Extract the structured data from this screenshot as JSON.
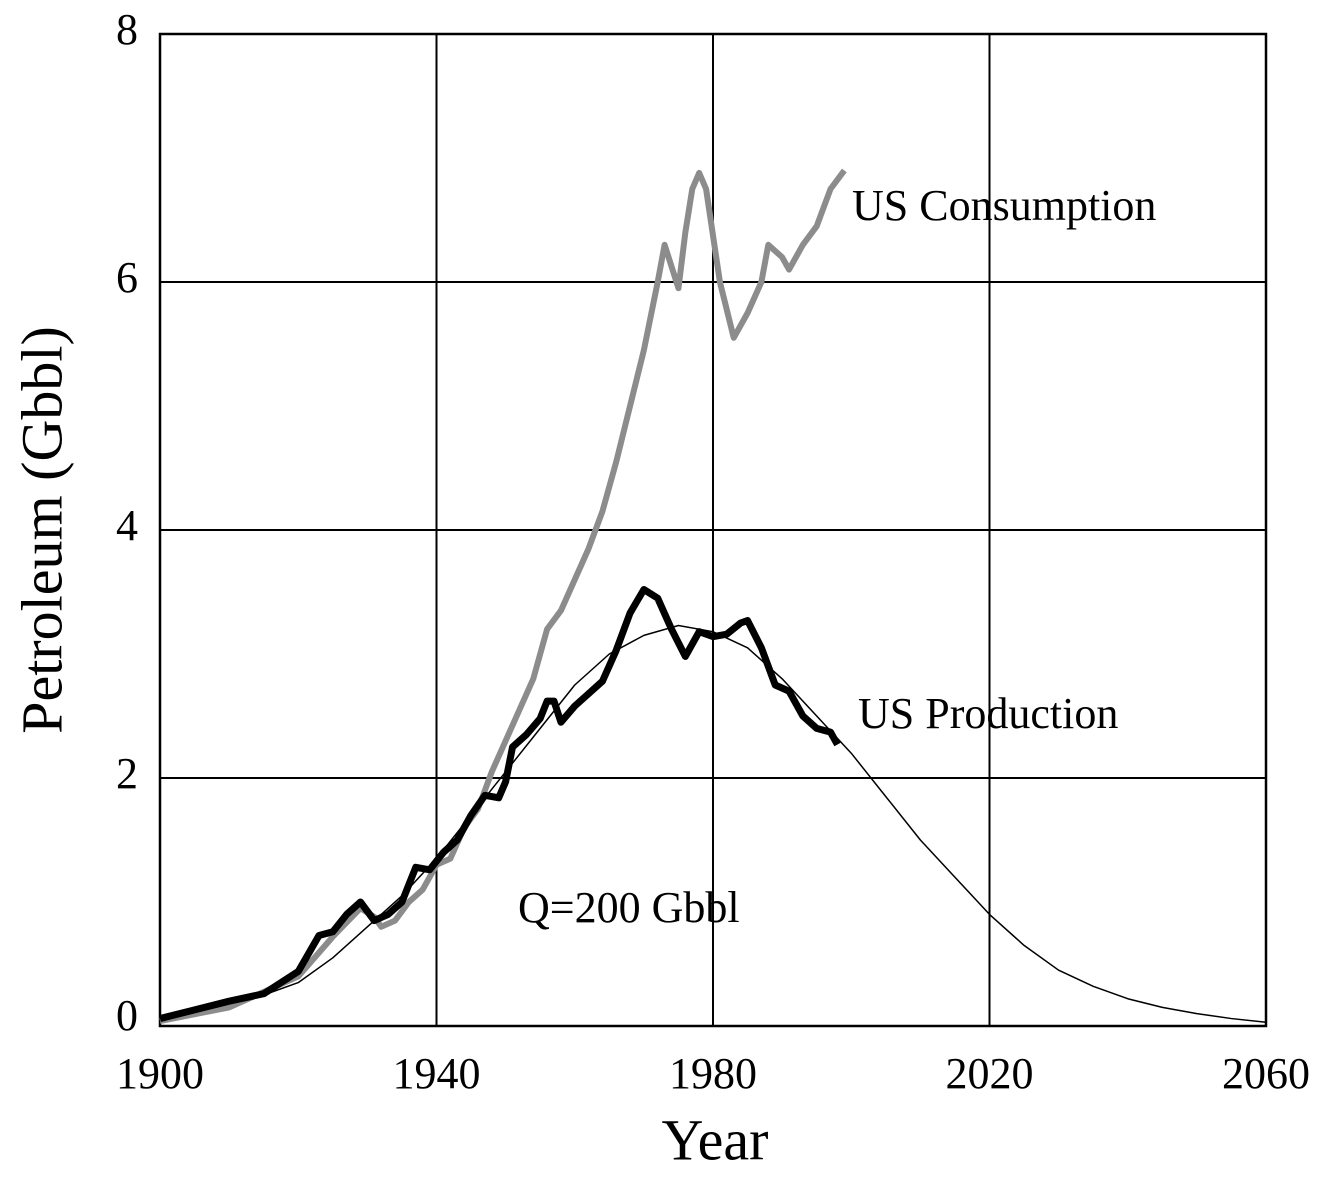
{
  "chart_data": {
    "type": "line",
    "xlabel": "Year",
    "ylabel": "Petroleum (Gbbl)",
    "xlim": [
      1900,
      2060
    ],
    "xticks": [
      1900,
      1940,
      1980,
      2020,
      2060
    ],
    "ylim": [
      0,
      8
    ],
    "yticks": [
      0,
      2,
      4,
      6,
      8
    ],
    "grid": true,
    "series": [
      {
        "name": "US Consumption",
        "color": "#8c8c8c",
        "x": [
          1900,
          1910,
          1920,
          1925,
          1929,
          1931,
          1932,
          1934,
          1936,
          1938,
          1940,
          1942,
          1944,
          1946,
          1948,
          1950,
          1952,
          1954,
          1956,
          1958,
          1960,
          1962,
          1964,
          1966,
          1968,
          1970,
          1972,
          1973,
          1975,
          1976,
          1977,
          1978,
          1979,
          1981,
          1983,
          1985,
          1987,
          1988,
          1990,
          1991,
          1993,
          1995,
          1996,
          1997,
          1999
        ],
        "values": [
          0.04,
          0.15,
          0.4,
          0.72,
          0.95,
          0.88,
          0.8,
          0.85,
          1.0,
          1.1,
          1.3,
          1.35,
          1.6,
          1.75,
          2.05,
          2.3,
          2.55,
          2.8,
          3.2,
          3.35,
          3.6,
          3.85,
          4.15,
          4.55,
          5.0,
          5.45,
          6.0,
          6.3,
          5.95,
          6.4,
          6.75,
          6.88,
          6.75,
          6.0,
          5.55,
          5.75,
          6.0,
          6.3,
          6.2,
          6.1,
          6.3,
          6.45,
          6.6,
          6.75,
          6.9
        ]
      },
      {
        "name": "US Production",
        "color": "#000000",
        "x": [
          1900,
          1905,
          1910,
          1915,
          1920,
          1923,
          1925,
          1927,
          1929,
          1931,
          1933,
          1935,
          1937,
          1939,
          1941,
          1943,
          1945,
          1947,
          1949,
          1950,
          1951,
          1953,
          1955,
          1956,
          1957,
          1958,
          1960,
          1962,
          1964,
          1966,
          1968,
          1970,
          1972,
          1974,
          1976,
          1978,
          1980,
          1982,
          1984,
          1985,
          1987,
          1989,
          1991,
          1993,
          1995,
          1997,
          1998
        ],
        "values": [
          0.06,
          0.13,
          0.2,
          0.26,
          0.44,
          0.73,
          0.76,
          0.9,
          1.0,
          0.85,
          0.9,
          1.0,
          1.28,
          1.26,
          1.4,
          1.5,
          1.7,
          1.86,
          1.84,
          1.97,
          2.25,
          2.35,
          2.48,
          2.62,
          2.62,
          2.45,
          2.58,
          2.68,
          2.78,
          3.03,
          3.33,
          3.52,
          3.45,
          3.2,
          2.98,
          3.18,
          3.14,
          3.16,
          3.25,
          3.27,
          3.05,
          2.75,
          2.7,
          2.5,
          2.4,
          2.37,
          2.27
        ]
      },
      {
        "name": "Q=200 Gbbl",
        "color": "#000000",
        "x": [
          1900,
          1905,
          1910,
          1915,
          1920,
          1925,
          1930,
          1935,
          1940,
          1945,
          1950,
          1955,
          1960,
          1965,
          1970,
          1975,
          1980,
          1985,
          1990,
          1995,
          2000,
          2005,
          2010,
          2015,
          2020,
          2025,
          2030,
          2035,
          2040,
          2045,
          2050,
          2055,
          2060
        ],
        "values": [
          0.05,
          0.1,
          0.15,
          0.25,
          0.35,
          0.55,
          0.8,
          1.05,
          1.35,
          1.7,
          2.05,
          2.4,
          2.75,
          3.0,
          3.15,
          3.23,
          3.18,
          3.05,
          2.8,
          2.5,
          2.2,
          1.85,
          1.5,
          1.2,
          0.9,
          0.65,
          0.45,
          0.32,
          0.22,
          0.15,
          0.1,
          0.06,
          0.03
        ]
      }
    ]
  }
}
